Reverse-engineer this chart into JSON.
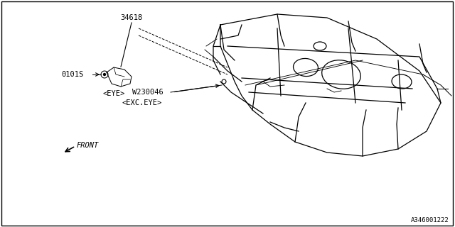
{
  "bg_color": "#ffffff",
  "border_color": "#000000",
  "line_color": "#000000",
  "text_color": "#000000",
  "part_number_34618": "34618",
  "part_label_eye": "<EYE>",
  "part_ref_eye": "0101S",
  "part_number_w230046": "W230046",
  "part_label_exceye": "<EXC.EYE>",
  "diagram_id": "A346001222",
  "front_label": "FRONT",
  "fig_width": 6.4,
  "fig_height": 3.2,
  "dpi": 100
}
